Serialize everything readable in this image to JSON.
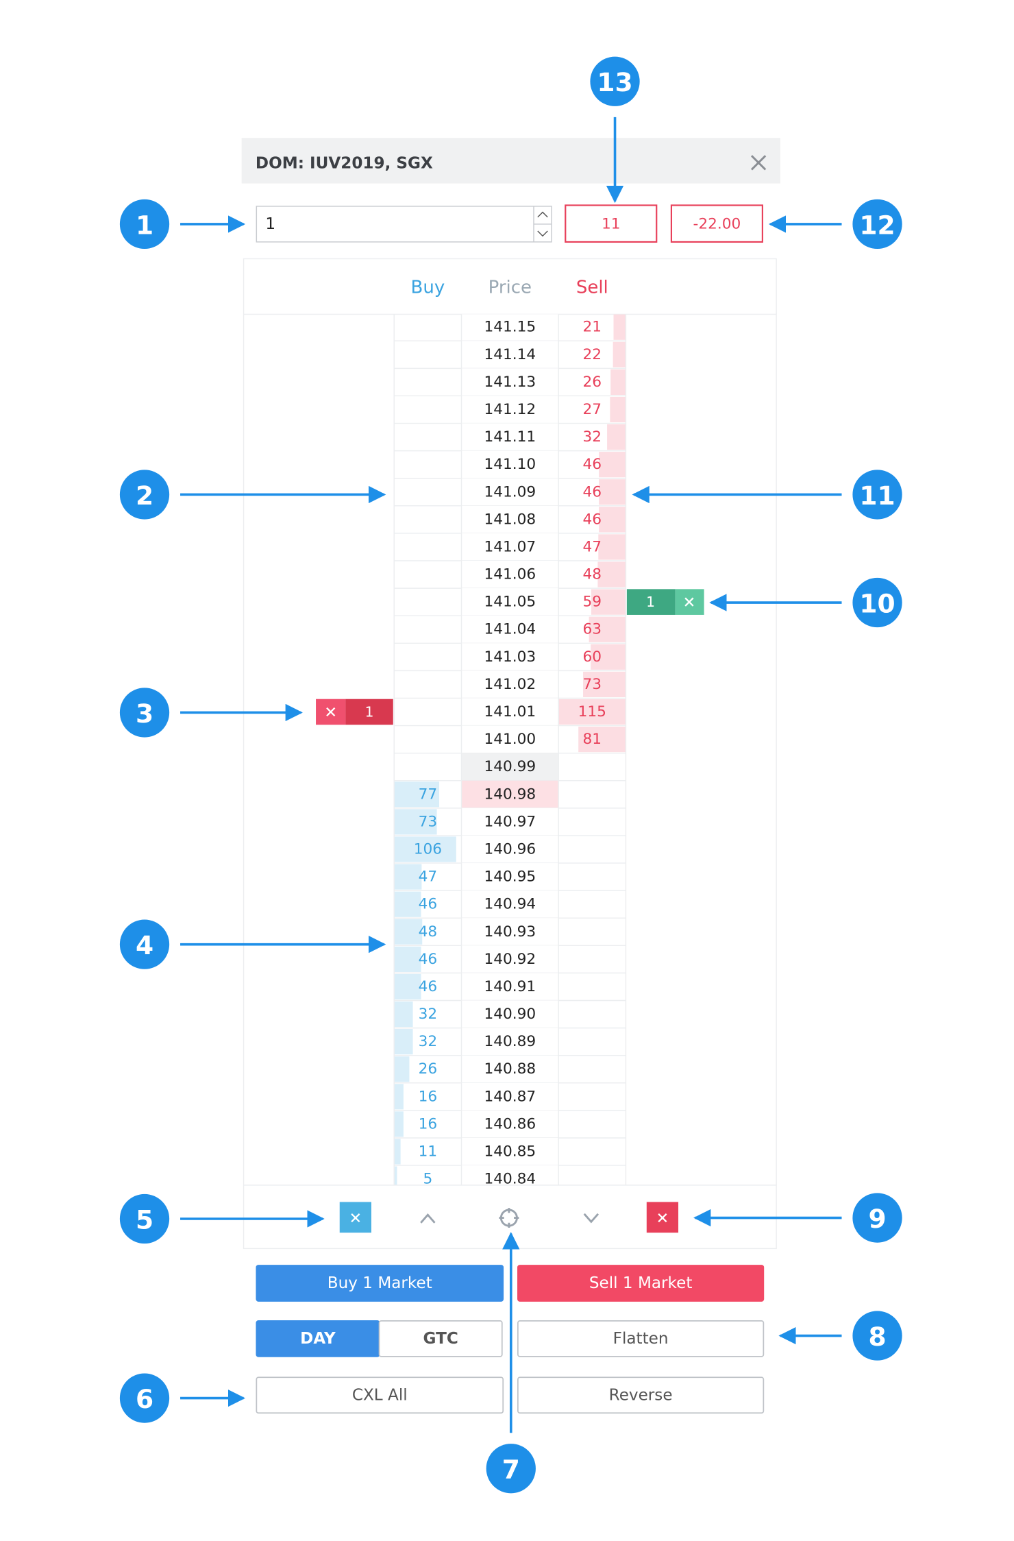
{
  "header": {
    "title": "DOM: IUV2019, SGX"
  },
  "quantity": "1",
  "summary": [
    "11",
    "-22.00"
  ],
  "columns": [
    "Buy",
    "Price",
    "Sell"
  ],
  "rows": [
    {
      "price": "141.15",
      "buy": null,
      "sell": 21
    },
    {
      "price": "141.14",
      "buy": null,
      "sell": 22
    },
    {
      "price": "141.13",
      "buy": null,
      "sell": 26
    },
    {
      "price": "141.12",
      "buy": null,
      "sell": 27
    },
    {
      "price": "141.11",
      "buy": null,
      "sell": 32
    },
    {
      "price": "141.10",
      "buy": null,
      "sell": 46
    },
    {
      "price": "141.09",
      "buy": null,
      "sell": 46
    },
    {
      "price": "141.08",
      "buy": null,
      "sell": 46
    },
    {
      "price": "141.07",
      "buy": null,
      "sell": 47
    },
    {
      "price": "141.06",
      "buy": null,
      "sell": 48
    },
    {
      "price": "141.05",
      "buy": null,
      "sell": 59
    },
    {
      "price": "141.04",
      "buy": null,
      "sell": 63
    },
    {
      "price": "141.03",
      "buy": null,
      "sell": 60
    },
    {
      "price": "141.02",
      "buy": null,
      "sell": 73
    },
    {
      "price": "141.01",
      "buy": null,
      "sell": 115
    },
    {
      "price": "141.00",
      "buy": null,
      "sell": 81
    },
    {
      "price": "140.99",
      "buy": null,
      "sell": null
    },
    {
      "price": "140.98",
      "buy": 77,
      "sell": null
    },
    {
      "price": "140.97",
      "buy": 73,
      "sell": null
    },
    {
      "price": "140.96",
      "buy": 106,
      "sell": null
    },
    {
      "price": "140.95",
      "buy": 47,
      "sell": null
    },
    {
      "price": "140.94",
      "buy": 46,
      "sell": null
    },
    {
      "price": "140.93",
      "buy": 48,
      "sell": null
    },
    {
      "price": "140.92",
      "buy": 46,
      "sell": null
    },
    {
      "price": "140.91",
      "buy": 46,
      "sell": null
    },
    {
      "price": "140.90",
      "buy": 32,
      "sell": null
    },
    {
      "price": "140.89",
      "buy": 32,
      "sell": null
    },
    {
      "price": "140.88",
      "buy": 26,
      "sell": null
    },
    {
      "price": "140.87",
      "buy": 16,
      "sell": null
    },
    {
      "price": "140.86",
      "buy": 16,
      "sell": null
    },
    {
      "price": "140.85",
      "buy": 11,
      "sell": null
    },
    {
      "price": "140.84",
      "buy": 5,
      "sell": null
    }
  ],
  "sell_order_qty": "1",
  "buy_order_qty": "1",
  "buttons": {
    "buy_market": "Buy 1 Market",
    "sell_market": "Sell 1 Market",
    "day": "DAY",
    "gtc": "GTC",
    "flatten": "Flatten",
    "cxl_all": "CXL All",
    "reverse": "Reverse"
  },
  "callouts": [
    "1",
    "2",
    "3",
    "4",
    "5",
    "6",
    "7",
    "8",
    "9",
    "10",
    "11",
    "12",
    "13"
  ]
}
